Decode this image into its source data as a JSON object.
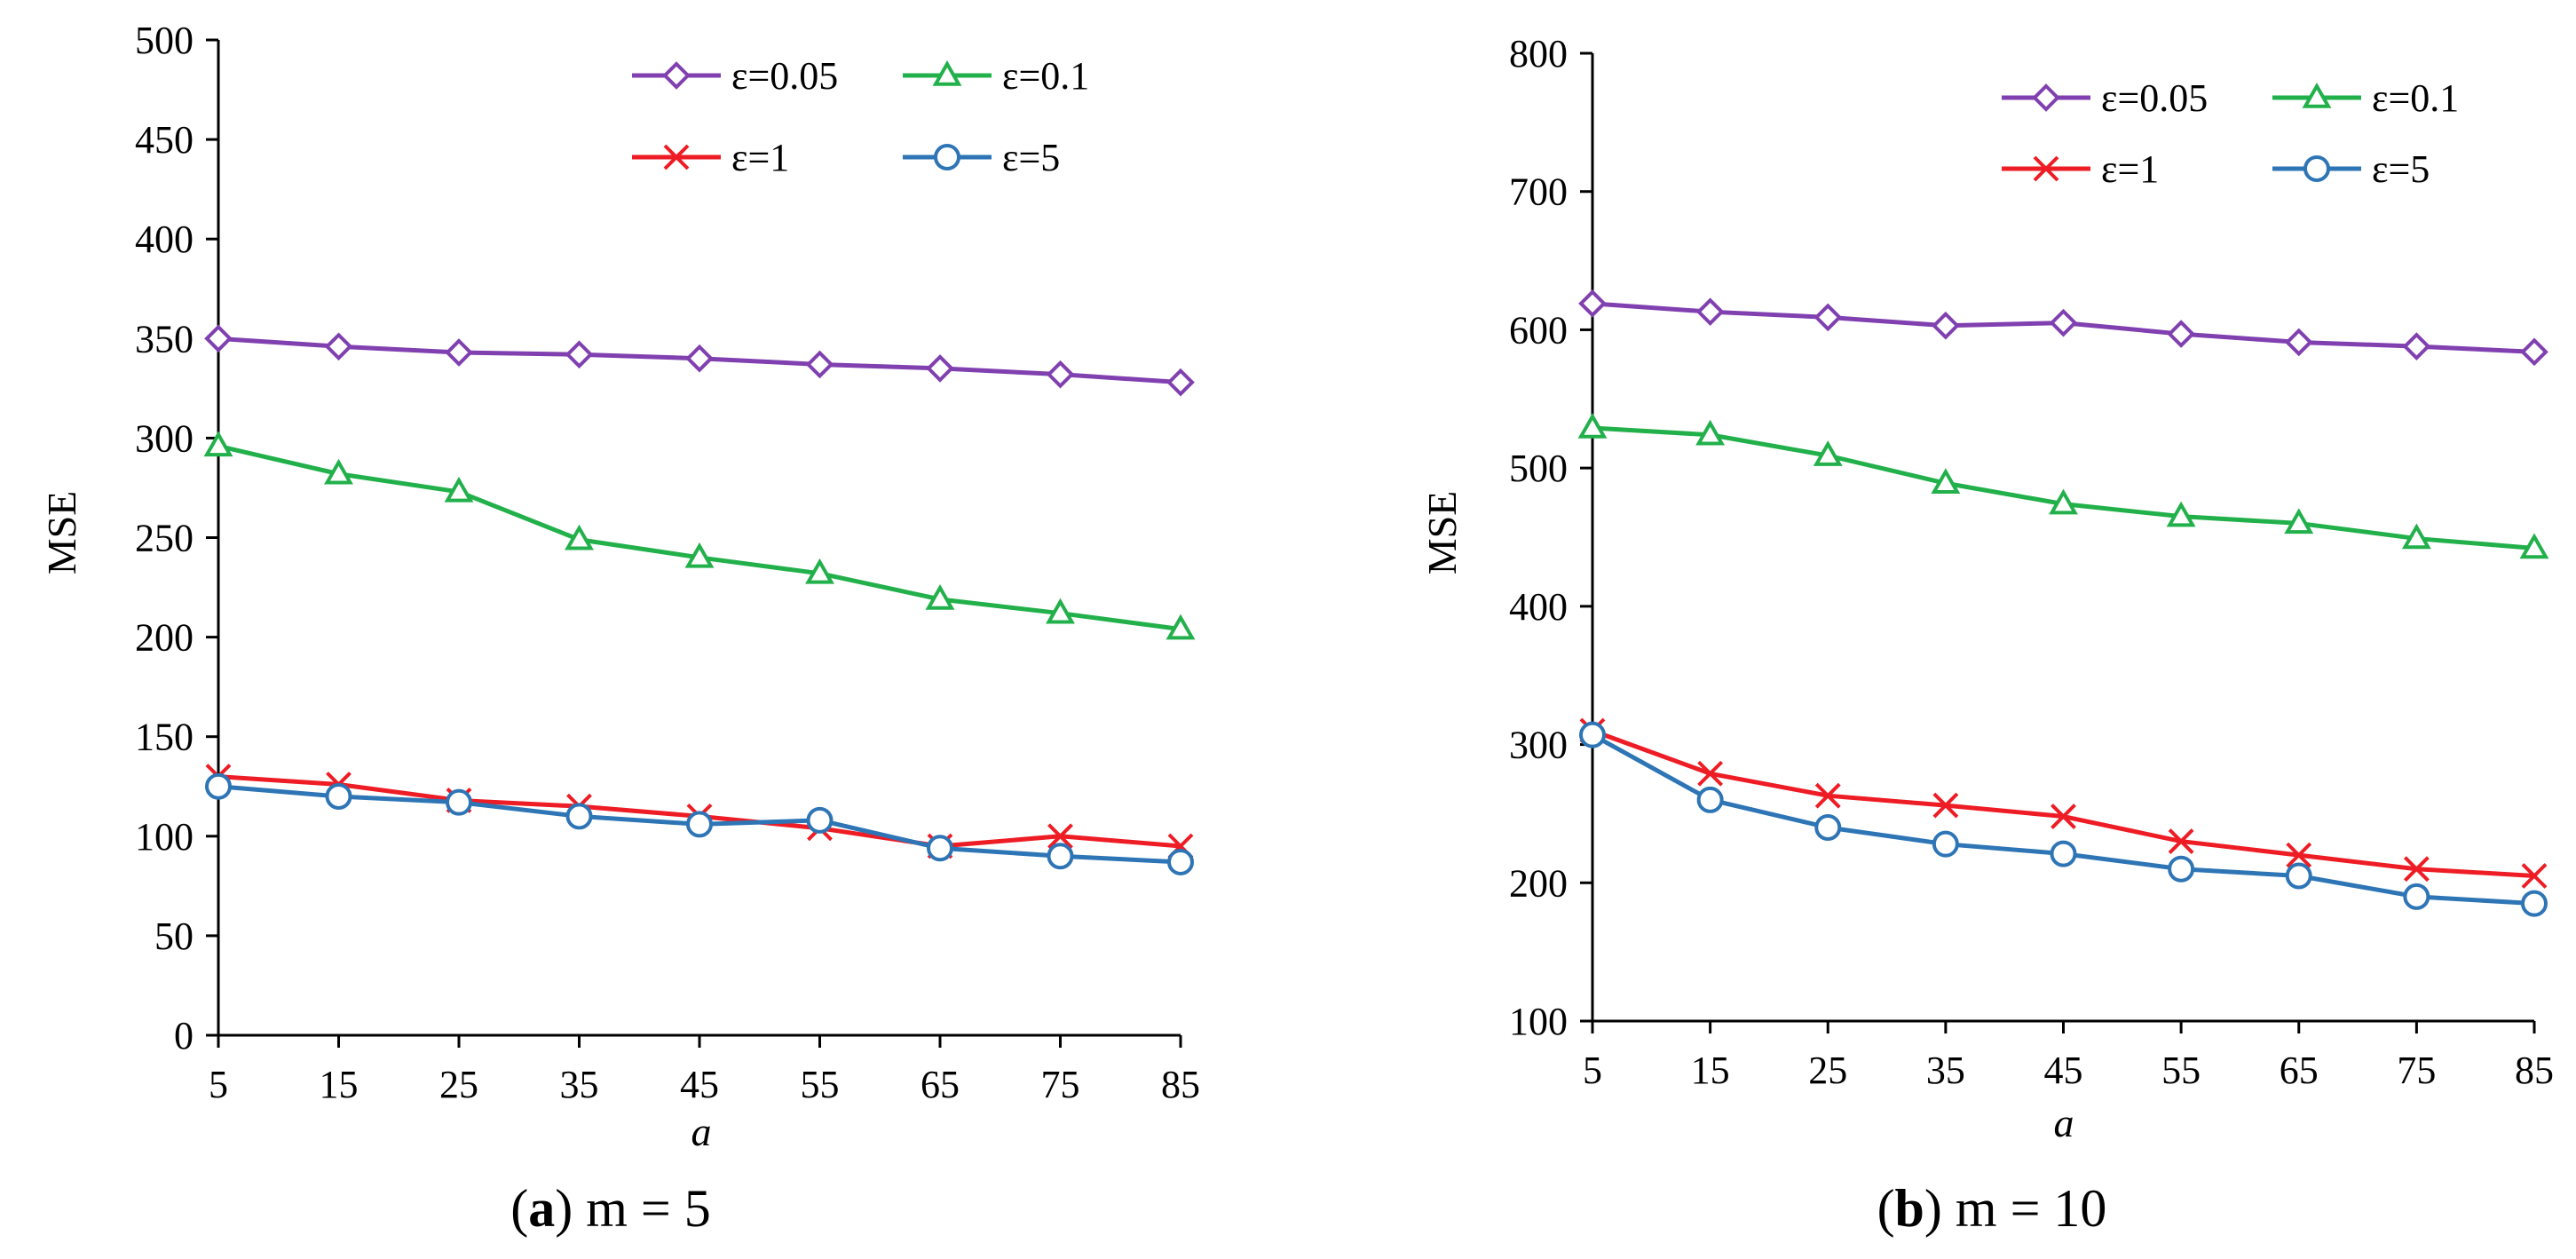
{
  "chart_data": [
    {
      "type": "line",
      "caption_letter": "a",
      "caption_rest": ") m = 5",
      "xlabel": "a",
      "ylabel": "MSE",
      "categories": [
        "5",
        "15",
        "25",
        "35",
        "45",
        "55",
        "65",
        "75",
        "85"
      ],
      "ylim": [
        0,
        500
      ],
      "yticks": [
        0,
        50,
        100,
        150,
        200,
        250,
        300,
        350,
        400,
        450,
        500
      ],
      "grid": false,
      "legend": "top-right",
      "series": [
        {
          "name": "ε=0.05",
          "marker": "diamond",
          "color": "#8040B0",
          "values": [
            350,
            346,
            343,
            342,
            340,
            337,
            335,
            332,
            328
          ]
        },
        {
          "name": "ε=0.1",
          "marker": "triangle",
          "color": "#22B04B",
          "values": [
            296,
            282,
            273,
            249,
            240,
            232,
            219,
            212,
            204
          ]
        },
        {
          "name": "ε=1",
          "marker": "x",
          "color": "#EE1C24",
          "values": [
            130,
            126,
            118,
            115,
            110,
            104,
            95,
            100,
            95
          ]
        },
        {
          "name": "ε=5",
          "marker": "circle",
          "color": "#2E75B6",
          "values": [
            125,
            120,
            117,
            110,
            106,
            108,
            94,
            90,
            87
          ]
        }
      ]
    },
    {
      "type": "line",
      "caption_letter": "b",
      "caption_rest": ") m = 10",
      "xlabel": "a",
      "ylabel": "MSE",
      "categories": [
        "5",
        "15",
        "25",
        "35",
        "45",
        "55",
        "65",
        "75",
        "85"
      ],
      "ylim": [
        100,
        800
      ],
      "yticks": [
        100,
        200,
        300,
        400,
        500,
        600,
        700,
        800
      ],
      "grid": false,
      "legend": "top-right",
      "series": [
        {
          "name": "ε=0.05",
          "marker": "diamond",
          "color": "#8040B0",
          "values": [
            619,
            613,
            609,
            603,
            605,
            597,
            591,
            588,
            584
          ]
        },
        {
          "name": "ε=0.1",
          "marker": "triangle",
          "color": "#22B04B",
          "values": [
            529,
            524,
            509,
            489,
            474,
            465,
            460,
            449,
            442
          ]
        },
        {
          "name": "ε=1",
          "marker": "x",
          "color": "#EE1C24",
          "values": [
            310,
            279,
            263,
            256,
            248,
            230,
            220,
            210,
            205
          ]
        },
        {
          "name": "ε=5",
          "marker": "circle",
          "color": "#2E75B6",
          "values": [
            307,
            260,
            240,
            228,
            221,
            210,
            205,
            190,
            185
          ]
        }
      ]
    }
  ]
}
